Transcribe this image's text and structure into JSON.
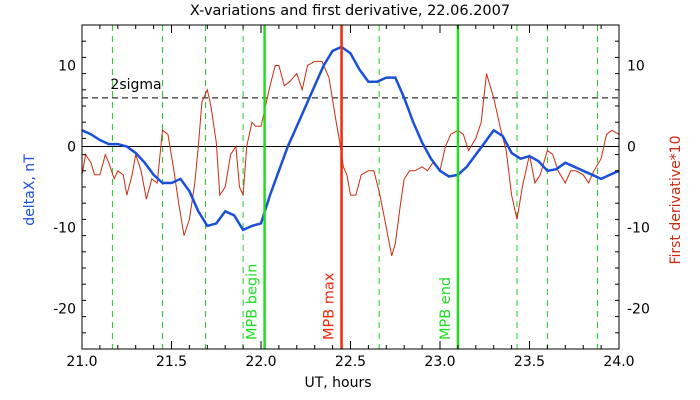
{
  "chart_data": {
    "type": "line",
    "title": "X-variations and first derivative, 22.06.2007",
    "xlabel": "UT, hours",
    "ylabel_left": "deltaX, nT",
    "ylabel_right": "First derivative*10",
    "xlim": [
      21.0,
      24.0
    ],
    "ylim": [
      -25,
      15
    ],
    "x_ticks": [
      21.0,
      21.5,
      22.0,
      22.5,
      23.0,
      23.5,
      24.0
    ],
    "y_ticks": [
      -20,
      -10,
      0,
      10
    ],
    "colors": {
      "deltaX": "#1a4fd8",
      "derivative": "#cc2a10",
      "mpb": "#22dd22",
      "mpb_max": "#ee2a10",
      "dashed_green": "#22cc22"
    },
    "threshold": {
      "label": "2sigma",
      "value": 6
    },
    "vertical_lines": [
      {
        "label": "MPB begin",
        "x": 22.02,
        "color": "#22dd22"
      },
      {
        "label": "MPB max",
        "x": 22.45,
        "color": "#ee2a10"
      },
      {
        "label": "MPB end",
        "x": 23.1,
        "color": "#22dd22"
      }
    ],
    "dashed_vlines_x": [
      21.17,
      21.45,
      21.69,
      21.9,
      22.66,
      23.43,
      23.6,
      23.88
    ],
    "series": [
      {
        "id": "deltaX",
        "x": [
          21.0,
          21.05,
          21.1,
          21.15,
          21.2,
          21.25,
          21.3,
          21.35,
          21.4,
          21.45,
          21.5,
          21.55,
          21.6,
          21.65,
          21.7,
          21.75,
          21.8,
          21.85,
          21.9,
          21.95,
          22.0,
          22.05,
          22.1,
          22.15,
          22.2,
          22.25,
          22.3,
          22.35,
          22.4,
          22.45,
          22.5,
          22.55,
          22.6,
          22.65,
          22.7,
          22.75,
          22.8,
          22.85,
          22.9,
          22.95,
          23.0,
          23.05,
          23.1,
          23.15,
          23.2,
          23.25,
          23.3,
          23.35,
          23.4,
          23.45,
          23.5,
          23.55,
          23.6,
          23.65,
          23.7,
          23.75,
          23.8,
          23.85,
          23.9,
          23.95,
          24.0
        ],
        "values": [
          2.0,
          1.5,
          0.8,
          0.3,
          0.3,
          0.0,
          -0.8,
          -2.0,
          -3.5,
          -4.5,
          -4.5,
          -4.0,
          -5.5,
          -8.0,
          -9.8,
          -9.5,
          -8.0,
          -8.5,
          -10.3,
          -9.8,
          -9.5,
          -6.0,
          -3.0,
          0.0,
          2.5,
          5.0,
          7.5,
          10.0,
          11.8,
          12.3,
          11.5,
          9.5,
          8.0,
          8.0,
          8.5,
          8.5,
          6.0,
          3.0,
          0.5,
          -1.5,
          -3.0,
          -3.7,
          -3.5,
          -2.5,
          -1.0,
          0.5,
          2.0,
          1.3,
          -0.8,
          -1.5,
          -1.2,
          -1.8,
          -3.0,
          -2.8,
          -2.0,
          -2.5,
          -3.0,
          -3.5,
          -4.0,
          -3.5,
          -3.0
        ]
      },
      {
        "id": "derivative",
        "x": [
          21.0,
          21.02,
          21.05,
          21.07,
          21.1,
          21.13,
          21.15,
          21.18,
          21.2,
          21.23,
          21.25,
          21.28,
          21.3,
          21.33,
          21.36,
          21.39,
          21.42,
          21.45,
          21.48,
          21.51,
          21.54,
          21.57,
          21.6,
          21.63,
          21.65,
          21.67,
          21.7,
          21.72,
          21.75,
          21.77,
          21.8,
          21.83,
          21.86,
          21.88,
          21.9,
          21.92,
          21.95,
          21.97,
          22.0,
          22.03,
          22.05,
          22.08,
          22.1,
          22.13,
          22.16,
          22.2,
          22.23,
          22.26,
          22.3,
          22.34,
          22.38,
          22.42,
          22.44,
          22.46,
          22.48,
          22.5,
          22.53,
          22.56,
          22.6,
          22.63,
          22.66,
          22.7,
          22.73,
          22.75,
          22.78,
          22.8,
          22.83,
          22.86,
          22.9,
          22.93,
          22.96,
          23.0,
          23.03,
          23.06,
          23.1,
          23.13,
          23.16,
          23.2,
          23.23,
          23.26,
          23.3,
          23.34,
          23.37,
          23.4,
          23.43,
          23.46,
          23.5,
          23.53,
          23.56,
          23.6,
          23.63,
          23.66,
          23.7,
          23.73,
          23.76,
          23.8,
          23.83,
          23.86,
          23.9,
          23.93,
          23.96,
          24.0
        ],
        "values": [
          -3.5,
          -1.0,
          -2.0,
          -3.5,
          -3.5,
          -1.0,
          -2.0,
          -4.0,
          -3.0,
          -3.5,
          -6.0,
          -3.5,
          -1.0,
          -3.0,
          -6.5,
          -4.0,
          -4.5,
          2.0,
          1.5,
          -2.5,
          -7.0,
          -11.0,
          -9.0,
          -4.5,
          0.0,
          5.5,
          7.0,
          5.0,
          0.5,
          -6.0,
          -5.0,
          -1.0,
          0.0,
          -5.0,
          -6.0,
          0.0,
          3.0,
          2.5,
          2.5,
          5.5,
          7.5,
          10.0,
          10.0,
          7.5,
          8.0,
          9.0,
          7.0,
          10.0,
          10.5,
          10.5,
          8.5,
          3.0,
          0.5,
          -2.5,
          -3.5,
          -6.0,
          -6.0,
          -3.5,
          -3.0,
          -3.0,
          -5.5,
          -10.0,
          -13.5,
          -12.0,
          -7.0,
          -4.0,
          -3.0,
          -3.0,
          -2.5,
          -3.0,
          -2.0,
          -3.0,
          0.0,
          1.5,
          2.0,
          1.5,
          -0.5,
          1.0,
          3.0,
          9.0,
          6.0,
          2.0,
          -0.5,
          -6.0,
          -9.0,
          -5.0,
          -1.0,
          -4.5,
          -3.5,
          -0.5,
          -1.0,
          -3.0,
          -4.5,
          -3.0,
          -3.0,
          -3.5,
          -4.5,
          -3.0,
          -1.5,
          1.5,
          2.0,
          1.5
        ]
      }
    ]
  }
}
